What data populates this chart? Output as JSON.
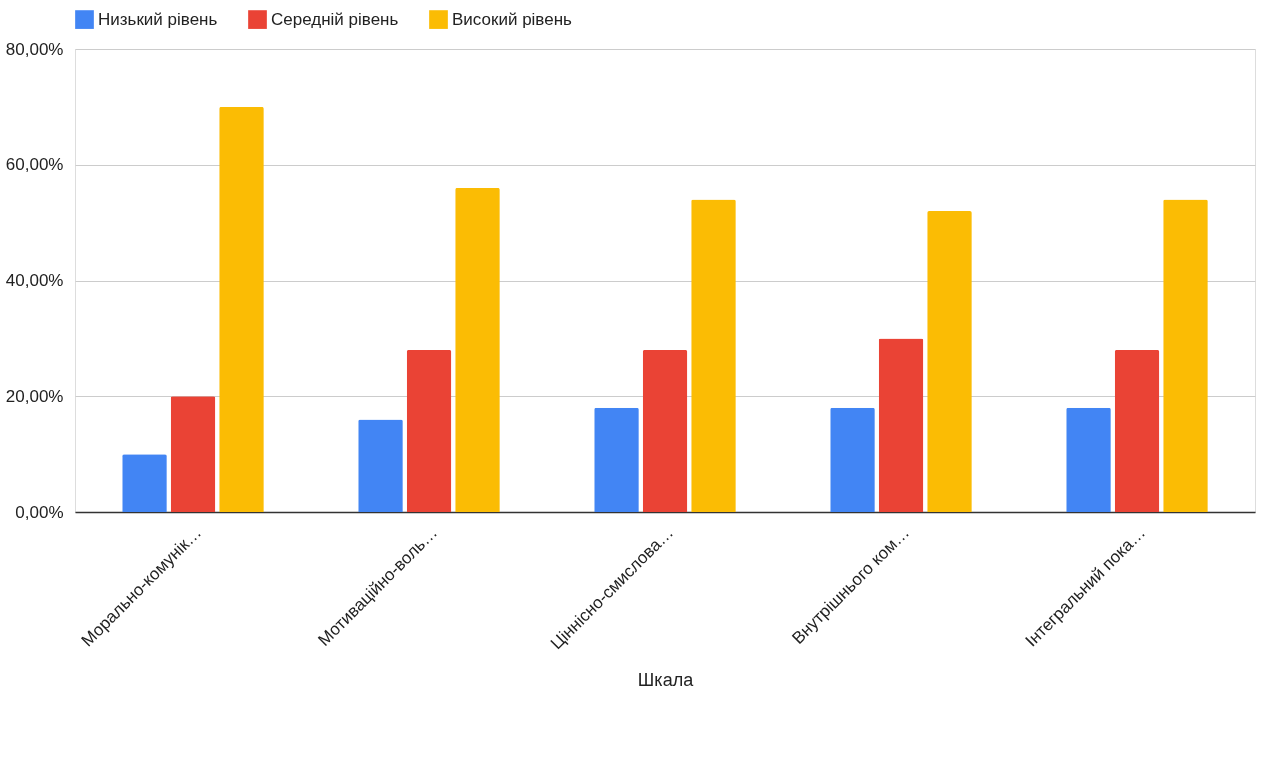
{
  "chart_data": {
    "type": "bar",
    "xlabel": "Шкала",
    "legend": "top",
    "grid": "y",
    "categories": [
      "Морально-комунік…",
      "Мотиваційно-воль…",
      "Ціннісно-смислова…",
      "Внутрішнього ком…",
      "Інтегральний пока…"
    ],
    "series": [
      {
        "name": "Низький рівень",
        "color": "#4285f4",
        "values": [
          10,
          16,
          18,
          18,
          18
        ]
      },
      {
        "name": "Середній рівень",
        "color": "#ea4335",
        "values": [
          20,
          28,
          28,
          30,
          28
        ]
      },
      {
        "name": "Високий рівень",
        "color": "#fbbc04",
        "values": [
          70,
          56,
          54,
          52,
          54
        ]
      }
    ],
    "ylim": [
      0,
      80
    ],
    "yticks": [
      {
        "value": 0,
        "label": "0,00%"
      },
      {
        "value": 20,
        "label": "20,00%"
      },
      {
        "value": 40,
        "label": "40,00%"
      },
      {
        "value": 60,
        "label": "60,00%"
      },
      {
        "value": 80,
        "label": "80,00%"
      }
    ]
  }
}
